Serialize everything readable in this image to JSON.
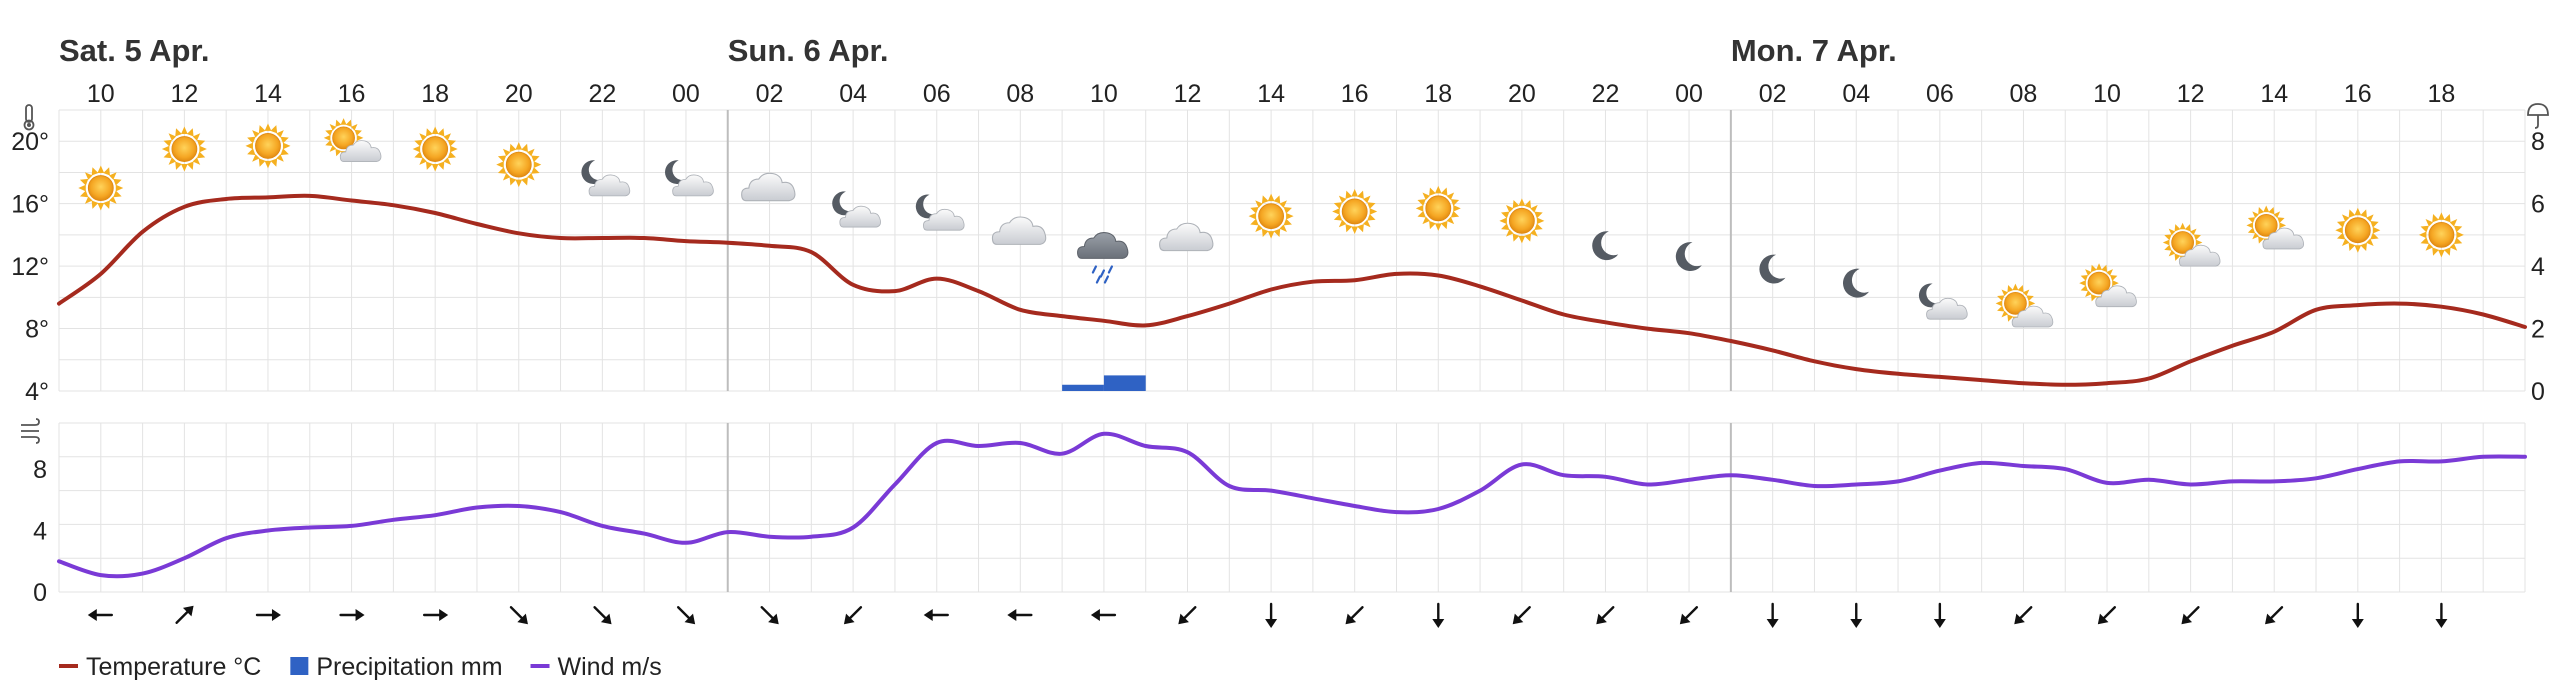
{
  "colors": {
    "temperature": "#a52a1e",
    "precipitation": "#2f62c4",
    "wind": "#7a3ad6",
    "grid": "#e3e3e3",
    "day_divider": "#bdbdbd"
  },
  "days": [
    "Sat. 5 Apr.",
    "Sun. 6 Apr.",
    "Mon. 7 Apr."
  ],
  "hour_ticks": [
    "10",
    "12",
    "14",
    "16",
    "18",
    "20",
    "22",
    "00",
    "02",
    "04",
    "06",
    "08",
    "10",
    "12",
    "14",
    "16",
    "18",
    "20",
    "22",
    "00",
    "02",
    "04",
    "06",
    "08",
    "10",
    "12",
    "14",
    "16",
    "18"
  ],
  "chart_data": [
    {
      "type": "line",
      "title": "Temperature and precipitation",
      "x_unit": "hours from Sat 5 Apr 08:00",
      "xlim": [
        0,
        59
      ],
      "temp_axis": {
        "ylim": [
          4,
          22
        ],
        "ticks": [
          4,
          8,
          12,
          16,
          20
        ],
        "tick_labels": [
          "4°",
          "8°",
          "12°",
          "16°",
          "20°"
        ]
      },
      "precip_axis": {
        "ylim": [
          0,
          9
        ],
        "ticks": [
          0,
          2,
          4,
          6,
          8
        ],
        "tick_labels": [
          "0",
          "2",
          "4",
          "6",
          "8"
        ]
      },
      "series": [
        {
          "name": "Temperature °C",
          "x": [
            0,
            1,
            2,
            3,
            4,
            5,
            6,
            7,
            8,
            9,
            10,
            11,
            12,
            13,
            14,
            15,
            16,
            17,
            18,
            19,
            20,
            21,
            22,
            23,
            24,
            25,
            26,
            27,
            28,
            29,
            30,
            31,
            32,
            33,
            34,
            35,
            36,
            37,
            38,
            39,
            40,
            41,
            42,
            43,
            44,
            45,
            46,
            47,
            48,
            49,
            50,
            51,
            52,
            53,
            54,
            55,
            56,
            57,
            58,
            59
          ],
          "values": [
            9.6,
            11.5,
            14.2,
            15.8,
            16.3,
            16.4,
            16.5,
            16.2,
            15.9,
            15.4,
            14.7,
            14.1,
            13.8,
            13.8,
            13.8,
            13.6,
            13.5,
            13.3,
            12.9,
            10.8,
            10.4,
            11.2,
            10.4,
            9.2,
            8.8,
            8.5,
            8.2,
            8.8,
            9.6,
            10.5,
            11.0,
            11.1,
            11.5,
            11.4,
            10.7,
            9.8,
            8.9,
            8.4,
            8.0,
            7.7,
            7.2,
            6.6,
            5.9,
            5.4,
            5.1,
            4.9,
            4.7,
            4.5,
            4.4,
            4.5,
            4.8,
            5.9,
            6.9,
            7.8,
            9.2,
            9.5,
            9.6,
            9.4,
            8.9,
            8.1
          ]
        },
        {
          "name": "Precipitation mm",
          "type": "bar",
          "bars": [
            {
              "x_start": 24,
              "x_end": 25,
              "value": 0.2
            },
            {
              "x_start": 25,
              "x_end": 26,
              "value": 0.5
            }
          ]
        }
      ],
      "symbols": [
        {
          "x": 1,
          "temp": 17.0,
          "icon": "sun"
        },
        {
          "x": 3,
          "temp": 19.5,
          "icon": "sun"
        },
        {
          "x": 5,
          "temp": 19.7,
          "icon": "sun"
        },
        {
          "x": 7,
          "temp": 19.7,
          "icon": "sun-cloud"
        },
        {
          "x": 9,
          "temp": 19.5,
          "icon": "sun"
        },
        {
          "x": 11,
          "temp": 18.5,
          "icon": "sun"
        },
        {
          "x": 13,
          "temp": 17.5,
          "icon": "moon-cloud"
        },
        {
          "x": 15,
          "temp": 17.5,
          "icon": "moon-cloud"
        },
        {
          "x": 17,
          "temp": 17.0,
          "icon": "cloud"
        },
        {
          "x": 19,
          "temp": 15.5,
          "icon": "moon-cloud"
        },
        {
          "x": 21,
          "temp": 15.3,
          "icon": "moon-cloud"
        },
        {
          "x": 23,
          "temp": 14.2,
          "icon": "cloud"
        },
        {
          "x": 25,
          "temp": 13.0,
          "icon": "rain-cloud"
        },
        {
          "x": 27,
          "temp": 13.8,
          "icon": "cloud"
        },
        {
          "x": 29,
          "temp": 15.2,
          "icon": "sun"
        },
        {
          "x": 31,
          "temp": 15.5,
          "icon": "sun"
        },
        {
          "x": 33,
          "temp": 15.7,
          "icon": "sun"
        },
        {
          "x": 35,
          "temp": 14.9,
          "icon": "sun"
        },
        {
          "x": 37,
          "temp": 13.3,
          "icon": "moon"
        },
        {
          "x": 39,
          "temp": 12.6,
          "icon": "moon"
        },
        {
          "x": 41,
          "temp": 11.8,
          "icon": "moon"
        },
        {
          "x": 43,
          "temp": 10.9,
          "icon": "moon"
        },
        {
          "x": 45,
          "temp": 9.6,
          "icon": "moon-cloud"
        },
        {
          "x": 47,
          "temp": 9.1,
          "icon": "sun-cloud"
        },
        {
          "x": 49,
          "temp": 10.4,
          "icon": "sun-cloud"
        },
        {
          "x": 51,
          "temp": 13.0,
          "icon": "sun-cloud"
        },
        {
          "x": 53,
          "temp": 14.1,
          "icon": "sun-cloud"
        },
        {
          "x": 55,
          "temp": 14.3,
          "icon": "sun"
        },
        {
          "x": 57,
          "temp": 14.0,
          "icon": "sun"
        }
      ]
    },
    {
      "type": "line",
      "title": "Wind",
      "x_unit": "hours from Sat 5 Apr 08:00",
      "xlim": [
        0,
        59
      ],
      "ylim": [
        0,
        11
      ],
      "yticks": [
        0,
        4,
        8
      ],
      "series": [
        {
          "name": "Wind m/s",
          "x": [
            0,
            1,
            2,
            3,
            4,
            5,
            6,
            7,
            8,
            9,
            10,
            11,
            12,
            13,
            14,
            15,
            16,
            17,
            18,
            19,
            20,
            21,
            22,
            23,
            24,
            25,
            26,
            27,
            28,
            29,
            30,
            31,
            32,
            33,
            34,
            35,
            36,
            37,
            38,
            39,
            40,
            41,
            42,
            43,
            44,
            45,
            46,
            47,
            48,
            49,
            50,
            51,
            52,
            53,
            54,
            55,
            56,
            57,
            58,
            59
          ],
          "values": [
            2.0,
            1.1,
            1.2,
            2.2,
            3.5,
            4.0,
            4.2,
            4.3,
            4.7,
            5.0,
            5.5,
            5.6,
            5.2,
            4.3,
            3.8,
            3.2,
            3.9,
            3.6,
            3.6,
            4.2,
            7.0,
            9.7,
            9.5,
            9.7,
            9.0,
            10.3,
            9.5,
            9.1,
            6.9,
            6.6,
            6.1,
            5.6,
            5.2,
            5.4,
            6.6,
            8.3,
            7.6,
            7.5,
            7.0,
            7.3,
            7.6,
            7.3,
            6.9,
            7.0,
            7.2,
            7.9,
            8.4,
            8.2,
            8.0,
            7.1,
            7.3,
            7.0,
            7.2,
            7.2,
            7.4,
            8.0,
            8.5,
            8.5,
            8.8,
            8.8
          ]
        }
      ],
      "wind_arrows": [
        {
          "x": 1,
          "dir": "w"
        },
        {
          "x": 3,
          "dir": "ne"
        },
        {
          "x": 5,
          "dir": "e"
        },
        {
          "x": 7,
          "dir": "e"
        },
        {
          "x": 9,
          "dir": "e"
        },
        {
          "x": 11,
          "dir": "se"
        },
        {
          "x": 13,
          "dir": "se"
        },
        {
          "x": 15,
          "dir": "se"
        },
        {
          "x": 17,
          "dir": "se"
        },
        {
          "x": 19,
          "dir": "sw"
        },
        {
          "x": 21,
          "dir": "w"
        },
        {
          "x": 23,
          "dir": "w"
        },
        {
          "x": 25,
          "dir": "w"
        },
        {
          "x": 27,
          "dir": "sw"
        },
        {
          "x": 29,
          "dir": "s"
        },
        {
          "x": 31,
          "dir": "sw"
        },
        {
          "x": 33,
          "dir": "s"
        },
        {
          "x": 35,
          "dir": "sw"
        },
        {
          "x": 37,
          "dir": "sw"
        },
        {
          "x": 39,
          "dir": "sw"
        },
        {
          "x": 41,
          "dir": "s"
        },
        {
          "x": 43,
          "dir": "s"
        },
        {
          "x": 45,
          "dir": "s"
        },
        {
          "x": 47,
          "dir": "sw"
        },
        {
          "x": 49,
          "dir": "sw"
        },
        {
          "x": 51,
          "dir": "sw"
        },
        {
          "x": 53,
          "dir": "sw"
        },
        {
          "x": 55,
          "dir": "s"
        },
        {
          "x": 57,
          "dir": "s"
        }
      ]
    }
  ],
  "axis_icons": {
    "temperature": "thermometer-icon",
    "precipitation": "umbrella-icon",
    "wind": "wind-icon"
  },
  "legend": [
    {
      "label": "Temperature °C",
      "marker": "line",
      "color": "#a52a1e"
    },
    {
      "label": "Precipitation mm",
      "marker": "square",
      "color": "#2f62c4"
    },
    {
      "label": "Wind m/s",
      "marker": "line",
      "color": "#7a3ad6"
    }
  ]
}
